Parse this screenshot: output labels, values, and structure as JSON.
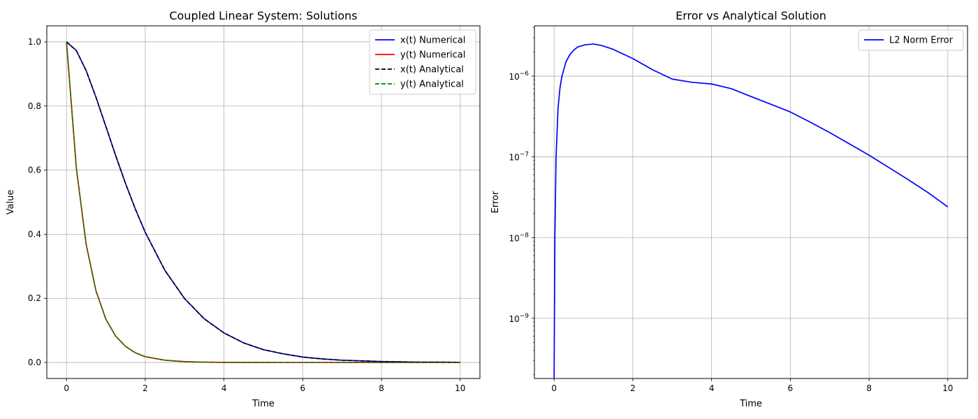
{
  "chart_data": [
    {
      "type": "line",
      "title": "Coupled Linear System: Solutions",
      "xlabel": "Time",
      "ylabel": "Value",
      "xlim": [
        -0.5,
        10.5
      ],
      "ylim": [
        -0.05,
        1.05
      ],
      "xticks": [
        0,
        2,
        4,
        6,
        8,
        10
      ],
      "xtick_labels": [
        "0",
        "2",
        "4",
        "6",
        "8",
        "10"
      ],
      "yticks": [
        0.0,
        0.2,
        0.4,
        0.6,
        0.8,
        1.0
      ],
      "ytick_labels": [
        "0.0",
        "0.2",
        "0.4",
        "0.6",
        "0.8",
        "1.0"
      ],
      "grid": true,
      "legend": "top-right",
      "x": [
        0,
        0.25,
        0.5,
        0.75,
        1,
        1.25,
        1.5,
        1.75,
        2,
        2.5,
        3,
        3.5,
        4,
        4.5,
        5,
        5.5,
        6,
        6.5,
        7,
        7.5,
        8,
        8.5,
        9,
        9.5,
        10
      ],
      "series": [
        {
          "name": "x(t) Numerical",
          "color": "#0000ff",
          "dash": "solid",
          "values": [
            1.0,
            0.973,
            0.91,
            0.827,
            0.736,
            0.645,
            0.558,
            0.478,
            0.406,
            0.287,
            0.199,
            0.136,
            0.092,
            0.061,
            0.04,
            0.027,
            0.017,
            0.011,
            0.007,
            0.005,
            0.003,
            0.002,
            0.001,
            0.001,
            0.0005
          ]
        },
        {
          "name": "y(t) Numerical",
          "color": "#ff0000",
          "dash": "solid",
          "values": [
            1.0,
            0.607,
            0.368,
            0.223,
            0.135,
            0.082,
            0.05,
            0.03,
            0.018,
            0.007,
            0.0025,
            0.0009,
            0.0003,
            0.0001,
            5e-05,
            2e-05,
            1e-05,
            0,
            0,
            0,
            0,
            0,
            0,
            0,
            0
          ]
        },
        {
          "name": "x(t) Analytical",
          "color": "#000000",
          "dash": "dashed",
          "values": [
            1.0,
            0.973,
            0.91,
            0.827,
            0.736,
            0.645,
            0.558,
            0.478,
            0.406,
            0.287,
            0.199,
            0.136,
            0.092,
            0.061,
            0.04,
            0.027,
            0.017,
            0.011,
            0.007,
            0.005,
            0.003,
            0.002,
            0.001,
            0.001,
            0.0005
          ]
        },
        {
          "name": "y(t) Analytical",
          "color": "#008000",
          "dash": "dashed",
          "values": [
            1.0,
            0.607,
            0.368,
            0.223,
            0.135,
            0.082,
            0.05,
            0.03,
            0.018,
            0.007,
            0.0025,
            0.0009,
            0.0003,
            0.0001,
            5e-05,
            2e-05,
            1e-05,
            0,
            0,
            0,
            0,
            0,
            0,
            0,
            0
          ]
        }
      ]
    },
    {
      "type": "line",
      "title": "Error vs Analytical Solution",
      "xlabel": "Time",
      "ylabel": "Error",
      "yscale": "log",
      "xlim": [
        -0.5,
        10.5
      ],
      "ylim": [
        1.8e-10,
        4.2e-06
      ],
      "xticks": [
        0,
        2,
        4,
        6,
        8,
        10
      ],
      "xtick_labels": [
        "0",
        "2",
        "4",
        "6",
        "8",
        "10"
      ],
      "yticks": [
        1e-09,
        1e-08,
        1e-07,
        1e-06
      ],
      "ytick_labels": [
        "10",
        "10",
        "10",
        "10"
      ],
      "ytick_exponents": [
        "−9",
        "−8",
        "−7",
        "−6"
      ],
      "grid": true,
      "legend": "top-right",
      "x": [
        0,
        0.02,
        0.05,
        0.1,
        0.15,
        0.2,
        0.3,
        0.4,
        0.5,
        0.6,
        0.8,
        1.0,
        1.2,
        1.5,
        2.0,
        2.5,
        3.0,
        3.5,
        4.0,
        4.5,
        5.0,
        5.5,
        6.0,
        6.5,
        7.0,
        7.5,
        8.0,
        8.5,
        9.0,
        9.5,
        10.0
      ],
      "series": [
        {
          "name": "L2 Norm Error",
          "color": "#0000ff",
          "dash": "solid",
          "values": [
            1.8e-10,
            1e-08,
            1e-07,
            4e-07,
            7.2e-07,
            1e-06,
            1.5e-06,
            1.85e-06,
            2.1e-06,
            2.3e-06,
            2.45e-06,
            2.5e-06,
            2.4e-06,
            2.15e-06,
            1.65e-06,
            1.2e-06,
            9.2e-07,
            8.4e-07,
            8e-07,
            7e-07,
            5.6e-07,
            4.5e-07,
            3.6e-07,
            2.7e-07,
            2e-07,
            1.45e-07,
            1.05e-07,
            7.4e-08,
            5.2e-08,
            3.6e-08,
            2.4e-08
          ]
        }
      ]
    }
  ]
}
